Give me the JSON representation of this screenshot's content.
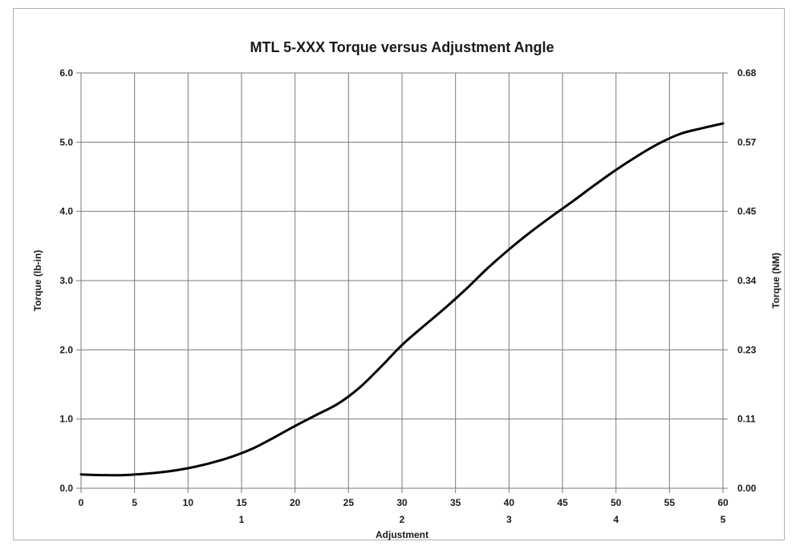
{
  "chart_data": {
    "type": "line",
    "title": "MTL 5-XXX Torque versus Adjustment Angle",
    "xlabel": "Adjustment",
    "ylabel": "Torque (lb-in)",
    "y2label": "Torque (NM)",
    "xlim": [
      0,
      60
    ],
    "ylim": [
      0,
      6
    ],
    "grid": true,
    "x_ticks": [
      "0",
      "5",
      "10",
      "15",
      "20",
      "25",
      "30",
      "35",
      "40",
      "45",
      "50",
      "55",
      "60"
    ],
    "x_secondary_ticks": [
      {
        "x": 15,
        "label": "1"
      },
      {
        "x": 30,
        "label": "2"
      },
      {
        "x": 40,
        "label": "3"
      },
      {
        "x": 50,
        "label": "4"
      },
      {
        "x": 60,
        "label": "5"
      }
    ],
    "y_ticks": [
      "0.0",
      "1.0",
      "2.0",
      "3.0",
      "4.0",
      "5.0",
      "6.0"
    ],
    "y2_ticks": [
      "0.00",
      "0.11",
      "0.23",
      "0.34",
      "0.45",
      "0.57",
      "0.68"
    ],
    "colors": {
      "line": "#000000",
      "grid": "#7a7a7a"
    },
    "series": [
      {
        "x": [
          0,
          2,
          4,
          6,
          8,
          10,
          12,
          14,
          16,
          18,
          20,
          22,
          24,
          26,
          28,
          30,
          32,
          34,
          36,
          38,
          40,
          42,
          44,
          46,
          48,
          50,
          52,
          54,
          56,
          58,
          60
        ],
        "y": [
          0.2,
          0.19,
          0.19,
          0.21,
          0.24,
          0.29,
          0.36,
          0.45,
          0.57,
          0.73,
          0.9,
          1.06,
          1.22,
          1.45,
          1.75,
          2.07,
          2.34,
          2.6,
          2.88,
          3.18,
          3.45,
          3.7,
          3.93,
          4.15,
          4.38,
          4.6,
          4.8,
          4.98,
          5.12,
          5.2,
          5.27
        ]
      }
    ]
  }
}
